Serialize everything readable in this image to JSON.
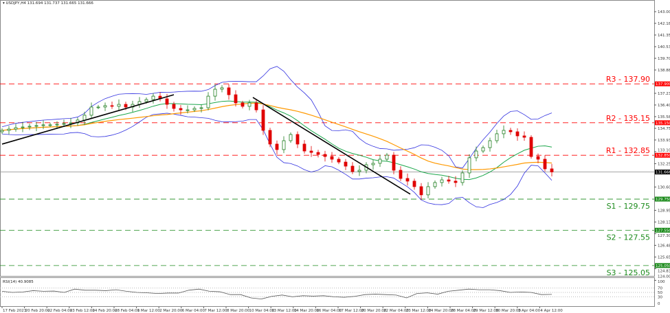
{
  "header": {
    "symbol": "USDJPY,H4",
    "ohlc": "131.694 131.737 131.665 131.666",
    "menu_icon": "triangle-down-icon"
  },
  "rsi": {
    "title": "RSI(14) 40.9085",
    "levels": [
      "100",
      "70",
      "50",
      "30",
      "0"
    ],
    "values": [
      55,
      50,
      52,
      58,
      55,
      56,
      50,
      65,
      60,
      60,
      58,
      62,
      55,
      50,
      48,
      45,
      47,
      47,
      60,
      65,
      55,
      53,
      40,
      40,
      25,
      20,
      32,
      38,
      30,
      35,
      33,
      35,
      30,
      28,
      32,
      40,
      42,
      40,
      38,
      25,
      45,
      48,
      42,
      55,
      60,
      65,
      62,
      62,
      58,
      50,
      52,
      50,
      40,
      41
    ]
  },
  "colors": {
    "resistance": "#ff0000",
    "support": "#1a8a1a",
    "bands": "#3030e0",
    "ma_fast": "#1aa64a",
    "ma_slow": "#ff9900",
    "bull": "#1e7d1e",
    "bear": "#e00000",
    "trendline": "#000000",
    "price_line": "#999999"
  },
  "chart_data": {
    "type": "candlestick",
    "price_axis": {
      "ticks": [
        "143.005",
        "142.180",
        "141.355",
        "140.530",
        "139.705",
        "138.880",
        "137.230",
        "136.405",
        "135.580",
        "134.755",
        "133.930",
        "133.105",
        "132.255",
        "130.605",
        "128.955",
        "128.130",
        "127.305",
        "126.480",
        "125.655",
        "124.830",
        "124.005"
      ],
      "range": [
        124.005,
        143.5
      ]
    },
    "time_axis": [
      "17 Feb 2023",
      "20 Feb 20:00",
      "22 Feb 04:00",
      "23 Feb 12:00",
      "24 Feb 20:00",
      "28 Feb 04:00",
      "1 Mar 12:00",
      "2 Mar 20:00",
      "6 Mar 04:00",
      "7 Mar 12:00",
      "8 Mar 20:00",
      "10 Mar 04:00",
      "13 Mar 12:00",
      "14 Mar 20:00",
      "16 Mar 04:00",
      "17 Mar 12:00",
      "20 Mar 20:00",
      "22 Mar 04:00",
      "23 Mar 12:00",
      "24 Mar 20:00",
      "28 Mar 04:00",
      "29 Mar 12:00",
      "30 Mar 20:00",
      "3 Apr 04:00",
      "4 Apr 12:00"
    ],
    "closes": [
      134.61,
      134.7,
      134.8,
      134.85,
      134.9,
      134.95,
      135.0,
      135.0,
      135.04,
      135.09,
      135.14,
      135.34,
      135.68,
      136.26,
      136.26,
      136.36,
      136.31,
      136.45,
      136.26,
      136.45,
      136.65,
      136.79,
      137.03,
      136.84,
      136.45,
      136.16,
      136.06,
      136.06,
      136.16,
      136.21,
      137.03,
      137.52,
      137.62,
      137.13,
      136.55,
      136.31,
      136.55,
      136.06,
      134.61,
      133.64,
      133.25,
      133.88,
      134.32,
      133.64,
      133.15,
      133.05,
      132.91,
      132.76,
      132.57,
      132.37,
      132.08,
      131.7,
      131.79,
      132.18,
      132.28,
      132.57,
      132.86,
      131.79,
      131.21,
      131.02,
      130.63,
      130.05,
      130.63,
      130.92,
      131.11,
      131.02,
      130.92,
      131.6,
      132.67,
      133.15,
      133.39,
      133.88,
      134.37,
      134.61,
      134.51,
      134.22,
      134.12,
      132.76,
      132.57,
      131.89,
      131.67
    ],
    "current_price": {
      "label": "131.666",
      "value": 131.666
    },
    "levels": [
      {
        "name": "R3",
        "text": "R3 - 137.90",
        "value": 137.9,
        "tag": "137.900",
        "kind": "resistance"
      },
      {
        "name": "R2",
        "text": "R2 - 135.15",
        "value": 135.15,
        "tag": "135.150",
        "kind": "resistance"
      },
      {
        "name": "R1",
        "text": "R1 - 132.85",
        "value": 132.85,
        "tag": "132.850",
        "kind": "resistance"
      },
      {
        "name": "S1",
        "text": "S1 - 129.75",
        "value": 129.75,
        "tag": "129.750",
        "kind": "support"
      },
      {
        "name": "S2",
        "text": "S2 - 127.55",
        "value": 127.55,
        "tag": "127.550",
        "kind": "support"
      },
      {
        "name": "S3",
        "text": "S3 - 125.05",
        "value": 125.05,
        "tag": "125.050",
        "kind": "support"
      }
    ],
    "trendlines": [
      {
        "from": {
          "bar": 0,
          "price": 133.64
        },
        "to": {
          "bar": 25,
          "price": 137.13
        }
      },
      {
        "from": {
          "bar": 36.5,
          "price": 136.94
        },
        "to": {
          "bar": 59.4,
          "price": 130.1
        }
      }
    ]
  }
}
